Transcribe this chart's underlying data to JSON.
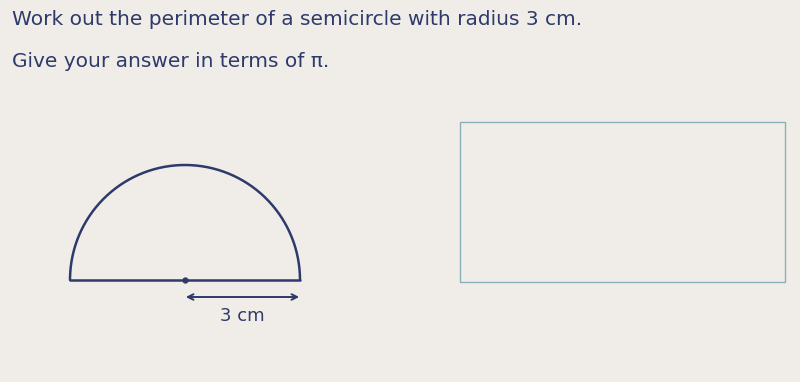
{
  "background_color": "#f0ede8",
  "text_line1": "Work out the perimeter of a semicircle with radius 3 cm.",
  "text_line2": "Give your answer in terms of π.",
  "label_text": "3 cm",
  "text_color": "#2d3a6b",
  "semicircle_color": "#2d3a6b",
  "semicircle_linewidth": 1.8,
  "answer_box_edge": "#8ab0b8",
  "answer_box_face": "#f0ede8",
  "fig_width": 8.0,
  "fig_height": 3.82,
  "text_fontsize": 14.5,
  "label_fontsize": 13,
  "dpi": 100
}
